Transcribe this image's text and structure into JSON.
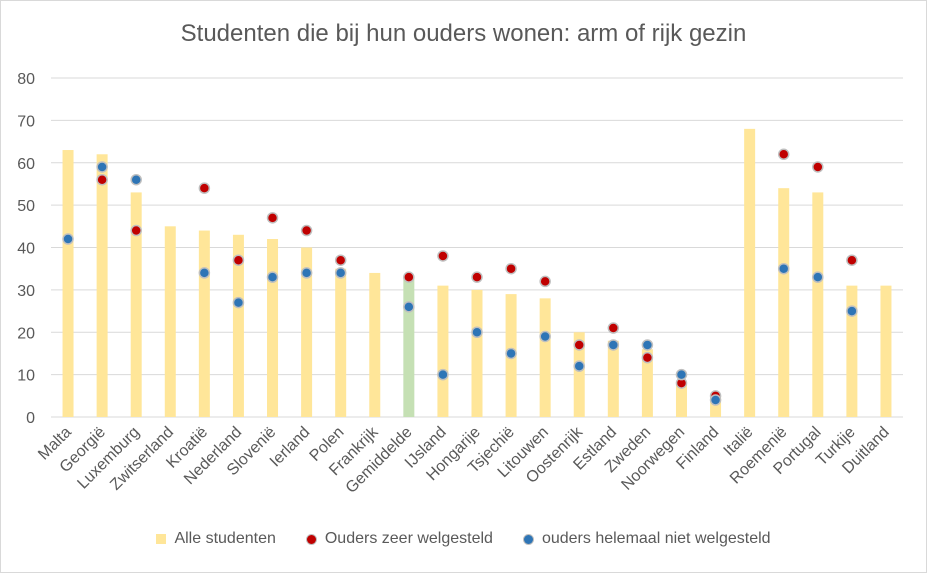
{
  "chart_data": {
    "type": "bar",
    "title": "Studenten die bij hun ouders wonen: arm of rijk gezin",
    "ylim": [
      0,
      80
    ],
    "yticks": [
      0,
      10,
      20,
      30,
      40,
      50,
      60,
      70,
      80
    ],
    "grid": true,
    "legend_position": "bottom",
    "categories": [
      "Malta",
      "Georgië",
      "Luxemburg",
      "Zwitserland",
      "Kroatië",
      "Nederland",
      "Slovenië",
      "Ierland",
      "Polen",
      "Frankrijk",
      "Gemiddelde",
      "IJsland",
      "Hongarije",
      "Tsjechië",
      "Litouwen",
      "Oostenrijk",
      "Estland",
      "Zweden",
      "Noorwegen",
      "Finland",
      "Italië",
      "Roemenië",
      "Portugal",
      "Turkije",
      "Duitland"
    ],
    "highlight_category": "Gemiddelde",
    "series": [
      {
        "name": "Alle studenten",
        "kind": "bar",
        "color": "#ffe699",
        "highlight_color": "#c5e0b4",
        "values": [
          63,
          62,
          53,
          45,
          44,
          43,
          42,
          40,
          35,
          34,
          33,
          31,
          30,
          29,
          28,
          20,
          18,
          16,
          8,
          5,
          68,
          54,
          53,
          31,
          31
        ]
      },
      {
        "name": "Ouders zeer welgesteld",
        "kind": "dot",
        "color": "#c00000",
        "values": [
          null,
          56,
          44,
          null,
          54,
          37,
          47,
          44,
          37,
          null,
          33,
          38,
          33,
          35,
          32,
          17,
          21,
          14,
          8,
          5,
          null,
          62,
          59,
          37,
          null
        ]
      },
      {
        "name": "ouders helemaal niet welgesteld",
        "kind": "dot",
        "color": "#2e75b6",
        "values": [
          42,
          59,
          56,
          null,
          34,
          27,
          33,
          34,
          34,
          null,
          26,
          10,
          20,
          15,
          19,
          12,
          17,
          17,
          10,
          4,
          null,
          35,
          33,
          25,
          null
        ]
      }
    ]
  },
  "colors": {
    "grid": "#d9d9d9",
    "text": "#595959",
    "dot_outline": "#bfbfbf"
  }
}
